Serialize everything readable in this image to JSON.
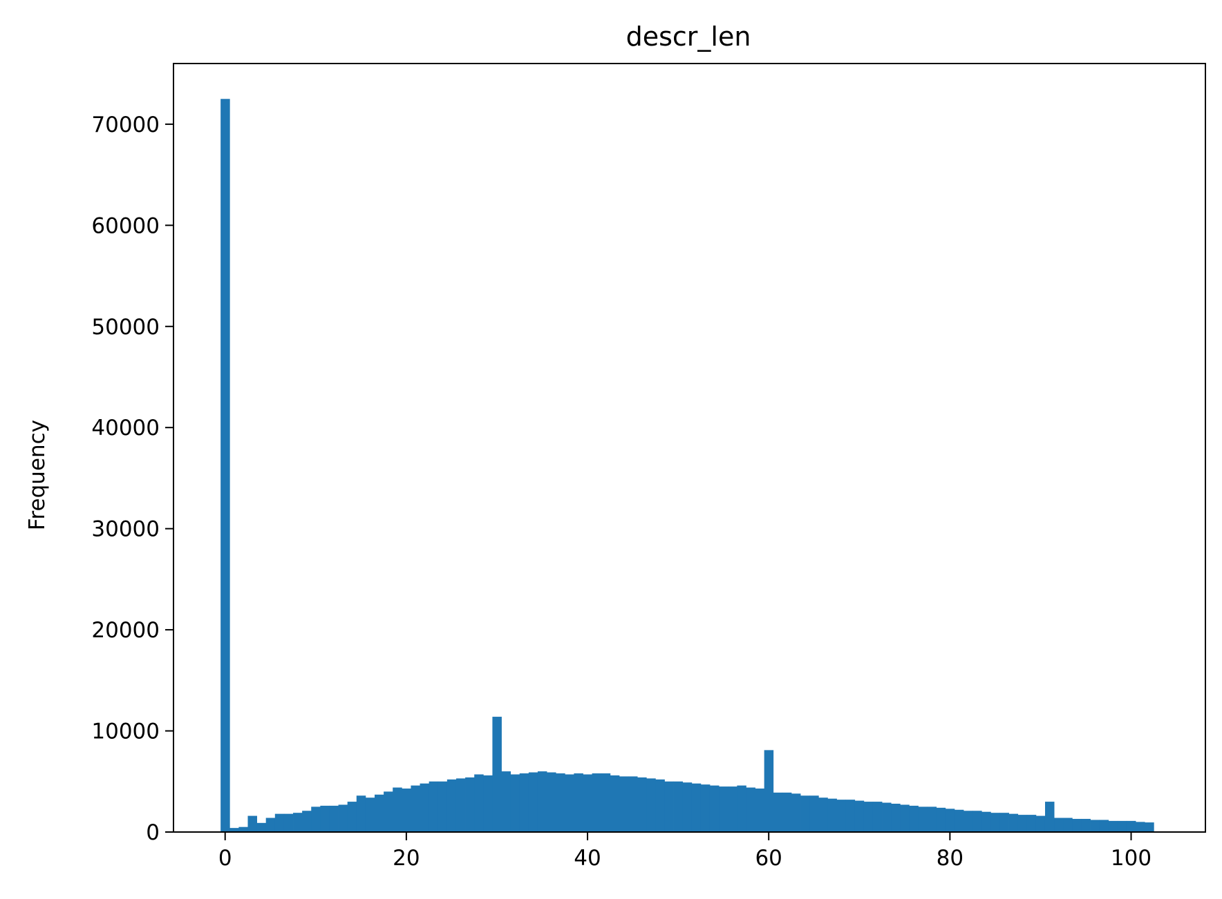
{
  "chart_data": {
    "type": "bar",
    "title": "descr_len",
    "xlabel": "",
    "ylabel": "Frequency",
    "xlim": [
      -5.2,
      108.7
    ],
    "ylim": [
      0,
      76000
    ],
    "xticks": [
      0,
      20,
      40,
      60,
      80,
      100
    ],
    "yticks": [
      0,
      10000,
      20000,
      30000,
      40000,
      50000,
      60000,
      70000
    ],
    "grid": false,
    "legend": "none",
    "color": "#1f77b4",
    "bin_start": 0,
    "bin_width": 1.0,
    "values": [
      72500,
      400,
      500,
      1600,
      900,
      1400,
      1800,
      1800,
      1900,
      2100,
      2500,
      2600,
      2600,
      2700,
      3000,
      3600,
      3400,
      3700,
      4000,
      4400,
      4300,
      4600,
      4800,
      5000,
      5000,
      5200,
      5300,
      5400,
      5700,
      5600,
      11400,
      6000,
      5700,
      5800,
      5900,
      6000,
      5900,
      5800,
      5700,
      5800,
      5700,
      5800,
      5800,
      5600,
      5500,
      5500,
      5400,
      5300,
      5200,
      5000,
      5000,
      4900,
      4800,
      4700,
      4600,
      4500,
      4500,
      4600,
      4400,
      4300,
      8100,
      3900,
      3900,
      3800,
      3600,
      3600,
      3400,
      3300,
      3200,
      3200,
      3100,
      3000,
      3000,
      2900,
      2800,
      2700,
      2600,
      2500,
      2500,
      2400,
      2300,
      2200,
      2100,
      2100,
      2000,
      1900,
      1900,
      1800,
      1700,
      1700,
      1600,
      3000,
      1400,
      1400,
      1300,
      1300,
      1200,
      1200,
      1100,
      1100,
      1100,
      1000,
      950
    ]
  }
}
